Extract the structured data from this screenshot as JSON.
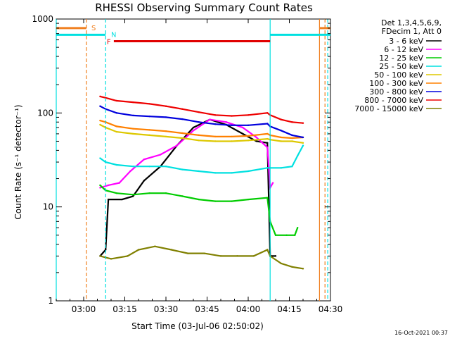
{
  "footer_date": "16-Oct-2021 00:37",
  "chart_data": {
    "type": "line",
    "title": "RHESSI Observing Summary Count Rates",
    "xlabel": "Start Time (03-Jul-06 02:50:02)",
    "ylabel": "Count Rate (s⁻¹ detector⁻¹)",
    "y_scale": "log",
    "ylim": [
      1,
      1000
    ],
    "xlim": [
      "02:50",
      "04:30"
    ],
    "x_ticks": [
      "03:00",
      "03:15",
      "03:30",
      "03:45",
      "04:00",
      "04:15",
      "04:30"
    ],
    "y_ticks": [
      "1",
      "10",
      "100",
      "1000"
    ],
    "legend_position": "right",
    "legend_header": [
      "Det 1,3,4,5,6,9,",
      "FDecim 1, Att 0"
    ],
    "flags": [
      {
        "label": "S",
        "color": "#f08020",
        "segments": [
          [
            "02:50",
            "03:01"
          ],
          [
            "04:26",
            "04:30"
          ]
        ],
        "level": 800
      },
      {
        "label": "N",
        "color": "#00e0e0",
        "segments": [
          [
            "02:50",
            "03:08"
          ],
          [
            "04:08",
            "04:26"
          ],
          [
            "04:26",
            "04:30"
          ]
        ],
        "level": 680
      },
      {
        "label": "F",
        "color": "#e00000",
        "segments": [
          [
            "03:11",
            "04:08"
          ]
        ],
        "level": 580
      }
    ],
    "vlines": [
      {
        "x": "03:01",
        "color": "#f08020",
        "style": "dashed"
      },
      {
        "x": "03:08",
        "color": "#00e0e0",
        "style": "dashed"
      },
      {
        "x": "04:28",
        "color": "#f08020",
        "style": "dashed"
      },
      {
        "x": "04:29",
        "color": "#00e0e0",
        "style": "dashed"
      },
      {
        "x": "02:50",
        "color": "#00e0e0",
        "style": "solid"
      },
      {
        "x": "04:08",
        "color": "#00e0e0",
        "style": "solid"
      },
      {
        "x": "04:26",
        "color": "#f08020",
        "style": "solid"
      }
    ],
    "series": [
      {
        "name": "3 - 6 keV",
        "color": "#000000",
        "points": [
          [
            "03:06",
            3
          ],
          [
            "03:08",
            3.5
          ],
          [
            "03:09",
            12
          ],
          [
            "03:14",
            12
          ],
          [
            "03:18",
            13
          ],
          [
            "03:22",
            19
          ],
          [
            "03:28",
            27
          ],
          [
            "03:34",
            45
          ],
          [
            "03:40",
            70
          ],
          [
            "03:46",
            85
          ],
          [
            "03:52",
            75
          ],
          [
            "03:58",
            60
          ],
          [
            "04:03",
            50
          ],
          [
            "04:07",
            48
          ],
          [
            "04:08",
            3
          ],
          [
            "04:10",
            3
          ]
        ]
      },
      {
        "name": "6 - 12 keV",
        "color": "#ff00ff",
        "points": [
          [
            "03:06",
            16
          ],
          [
            "03:09",
            17
          ],
          [
            "03:13",
            18
          ],
          [
            "03:17",
            24
          ],
          [
            "03:22",
            32
          ],
          [
            "03:28",
            36
          ],
          [
            "03:34",
            45
          ],
          [
            "03:40",
            65
          ],
          [
            "03:46",
            85
          ],
          [
            "03:52",
            80
          ],
          [
            "03:58",
            70
          ],
          [
            "04:03",
            55
          ],
          [
            "04:07",
            43
          ],
          [
            "04:08",
            16
          ],
          [
            "04:09",
            18
          ]
        ]
      },
      {
        "name": "12 - 25 keV",
        "color": "#00cc00",
        "points": [
          [
            "03:06",
            17
          ],
          [
            "03:08",
            15
          ],
          [
            "03:12",
            14
          ],
          [
            "03:18",
            13.5
          ],
          [
            "03:24",
            14
          ],
          [
            "03:30",
            14
          ],
          [
            "03:36",
            13
          ],
          [
            "03:42",
            12
          ],
          [
            "03:48",
            11.5
          ],
          [
            "03:54",
            11.5
          ],
          [
            "04:00",
            12
          ],
          [
            "04:07",
            12.5
          ],
          [
            "04:08",
            7
          ],
          [
            "04:10",
            5
          ],
          [
            "04:14",
            5
          ],
          [
            "04:17",
            5
          ],
          [
            "04:18",
            6
          ]
        ]
      },
      {
        "name": "25 - 50 keV",
        "color": "#00e0e0",
        "points": [
          [
            "03:06",
            33
          ],
          [
            "03:08",
            30
          ],
          [
            "03:12",
            28
          ],
          [
            "03:18",
            27
          ],
          [
            "03:24",
            27
          ],
          [
            "03:30",
            27
          ],
          [
            "03:36",
            25
          ],
          [
            "03:42",
            24
          ],
          [
            "03:48",
            23
          ],
          [
            "03:54",
            23
          ],
          [
            "04:00",
            24
          ],
          [
            "04:07",
            26
          ],
          [
            "04:08",
            26
          ],
          [
            "04:12",
            26
          ],
          [
            "04:16",
            27
          ],
          [
            "04:18",
            35
          ],
          [
            "04:20",
            45
          ]
        ]
      },
      {
        "name": "50 - 100 keV",
        "color": "#ddc800",
        "points": [
          [
            "03:06",
            75
          ],
          [
            "03:08",
            70
          ],
          [
            "03:12",
            63
          ],
          [
            "03:18",
            60
          ],
          [
            "03:24",
            58
          ],
          [
            "03:30",
            56
          ],
          [
            "03:36",
            54
          ],
          [
            "03:42",
            51
          ],
          [
            "03:48",
            50
          ],
          [
            "03:54",
            50
          ],
          [
            "04:00",
            51
          ],
          [
            "04:07",
            53
          ],
          [
            "04:08",
            52
          ],
          [
            "04:12",
            50
          ],
          [
            "04:16",
            50
          ],
          [
            "04:20",
            48
          ]
        ]
      },
      {
        "name": "100 - 300 keV",
        "color": "#ff8000",
        "points": [
          [
            "03:06",
            83
          ],
          [
            "03:08",
            80
          ],
          [
            "03:12",
            72
          ],
          [
            "03:18",
            68
          ],
          [
            "03:24",
            66
          ],
          [
            "03:30",
            64
          ],
          [
            "03:36",
            61
          ],
          [
            "03:42",
            58
          ],
          [
            "03:48",
            56
          ],
          [
            "03:54",
            56
          ],
          [
            "04:00",
            57
          ],
          [
            "04:07",
            60
          ],
          [
            "04:08",
            58
          ],
          [
            "04:12",
            55
          ],
          [
            "04:16",
            54
          ],
          [
            "04:20",
            55
          ]
        ]
      },
      {
        "name": "300 - 800 keV",
        "color": "#0000dd",
        "points": [
          [
            "03:06",
            118
          ],
          [
            "03:08",
            110
          ],
          [
            "03:12",
            100
          ],
          [
            "03:18",
            94
          ],
          [
            "03:24",
            92
          ],
          [
            "03:30",
            90
          ],
          [
            "03:36",
            86
          ],
          [
            "03:42",
            80
          ],
          [
            "03:48",
            76
          ],
          [
            "03:54",
            74
          ],
          [
            "04:00",
            74
          ],
          [
            "04:07",
            77
          ],
          [
            "04:08",
            72
          ],
          [
            "04:12",
            65
          ],
          [
            "04:16",
            58
          ],
          [
            "04:20",
            55
          ]
        ]
      },
      {
        "name": "800 - 7000 keV",
        "color": "#ee0000",
        "points": [
          [
            "03:06",
            150
          ],
          [
            "03:08",
            145
          ],
          [
            "03:12",
            135
          ],
          [
            "03:18",
            130
          ],
          [
            "03:24",
            125
          ],
          [
            "03:30",
            118
          ],
          [
            "03:36",
            110
          ],
          [
            "03:42",
            102
          ],
          [
            "03:48",
            95
          ],
          [
            "03:54",
            93
          ],
          [
            "04:00",
            95
          ],
          [
            "04:07",
            100
          ],
          [
            "04:08",
            95
          ],
          [
            "04:12",
            85
          ],
          [
            "04:16",
            80
          ],
          [
            "04:20",
            78
          ]
        ]
      },
      {
        "name": "7000 - 15000 keV",
        "color": "#808000",
        "points": [
          [
            "03:06",
            3
          ],
          [
            "03:10",
            2.8
          ],
          [
            "03:16",
            3
          ],
          [
            "03:20",
            3.5
          ],
          [
            "03:26",
            3.8
          ],
          [
            "03:32",
            3.5
          ],
          [
            "03:38",
            3.2
          ],
          [
            "03:44",
            3.2
          ],
          [
            "03:50",
            3
          ],
          [
            "03:56",
            3
          ],
          [
            "04:02",
            3
          ],
          [
            "04:07",
            3.5
          ],
          [
            "04:08",
            3
          ],
          [
            "04:12",
            2.5
          ],
          [
            "04:16",
            2.3
          ],
          [
            "04:20",
            2.2
          ]
        ]
      }
    ]
  }
}
